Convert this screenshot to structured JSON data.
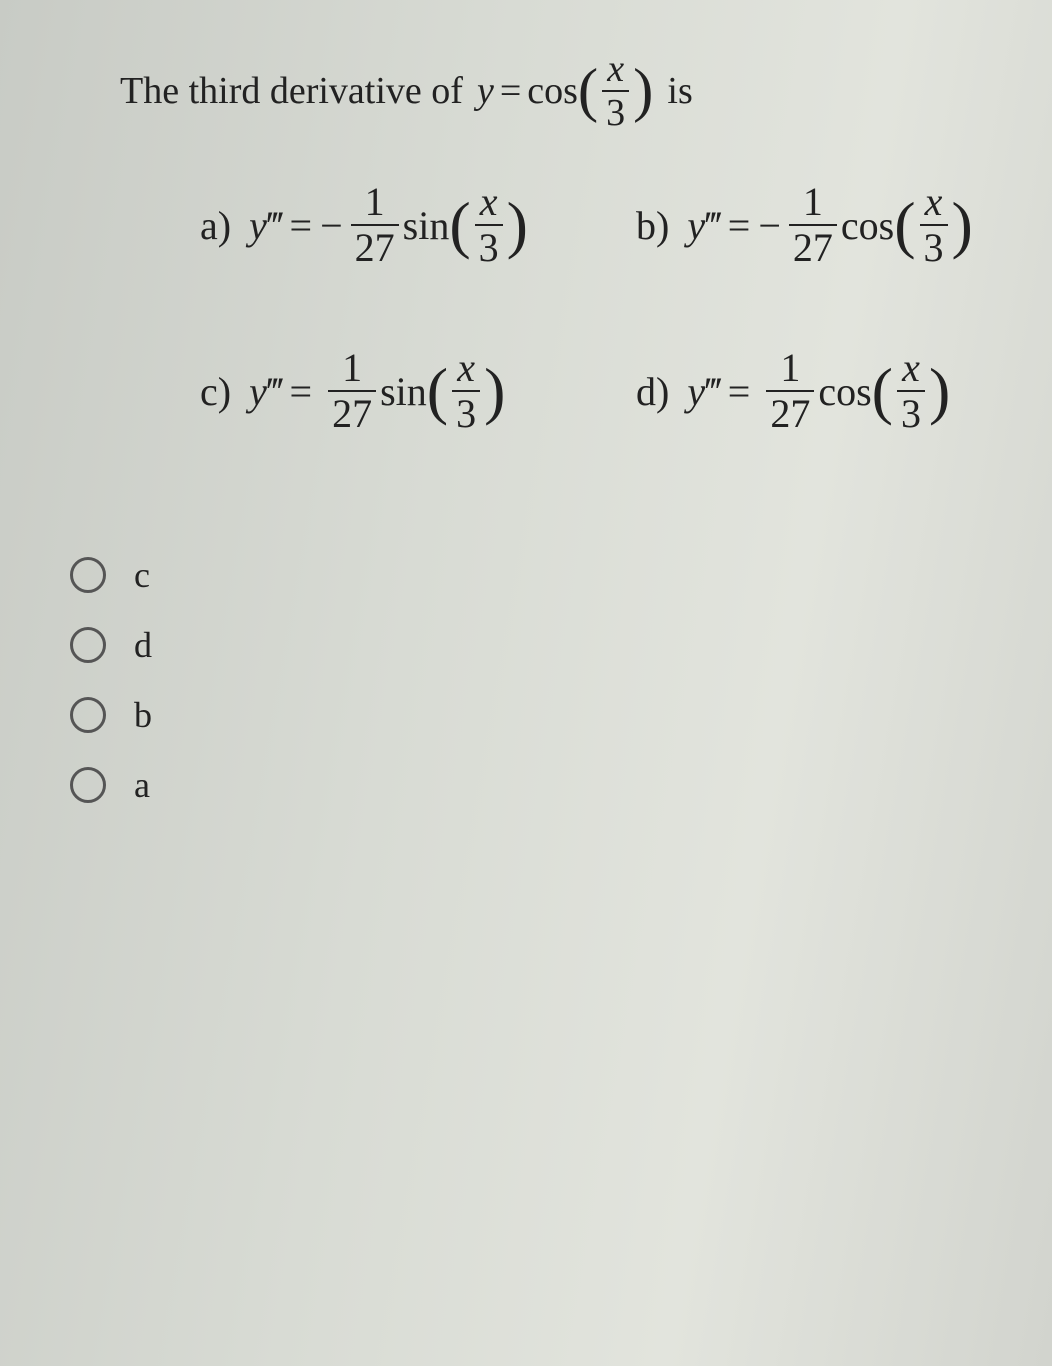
{
  "question": {
    "lead": "The third derivative of",
    "var": "y",
    "equals": "=",
    "func": "cos",
    "arg_num": "x",
    "arg_den": "3",
    "tail": "is"
  },
  "options": {
    "a": {
      "label": "a)",
      "lhs_var": "y",
      "lhs_prime": "‴",
      "equals": "=",
      "sign": "−",
      "coef_num": "1",
      "coef_den": "27",
      "func": "sin",
      "arg_num": "x",
      "arg_den": "3"
    },
    "b": {
      "label": "b)",
      "lhs_var": "y",
      "lhs_prime": "‴",
      "equals": "=",
      "sign": "−",
      "coef_num": "1",
      "coef_den": "27",
      "func": "cos",
      "arg_num": "x",
      "arg_den": "3"
    },
    "c": {
      "label": "c)",
      "lhs_var": "y",
      "lhs_prime": "‴",
      "equals": "=",
      "sign": "",
      "coef_num": "1",
      "coef_den": "27",
      "func": "sin",
      "arg_num": "x",
      "arg_den": "3"
    },
    "d": {
      "label": "d)",
      "lhs_var": "y",
      "lhs_prime": "‴",
      "equals": "=",
      "sign": "",
      "coef_num": "1",
      "coef_den": "27",
      "func": "cos",
      "arg_num": "x",
      "arg_den": "3"
    }
  },
  "answers": [
    {
      "key": "c",
      "label": "c"
    },
    {
      "key": "d",
      "label": "d"
    },
    {
      "key": "b",
      "label": "b"
    },
    {
      "key": "a",
      "label": "a"
    }
  ],
  "style": {
    "question_fontsize": 38,
    "option_fontsize": 40,
    "answer_fontsize": 36,
    "text_color": "#222222",
    "radio_border_color": "#555555",
    "background_gradient": [
      "#c8cbc5",
      "#d8dbd4",
      "#e2e4dd",
      "#d2d4ce"
    ]
  }
}
